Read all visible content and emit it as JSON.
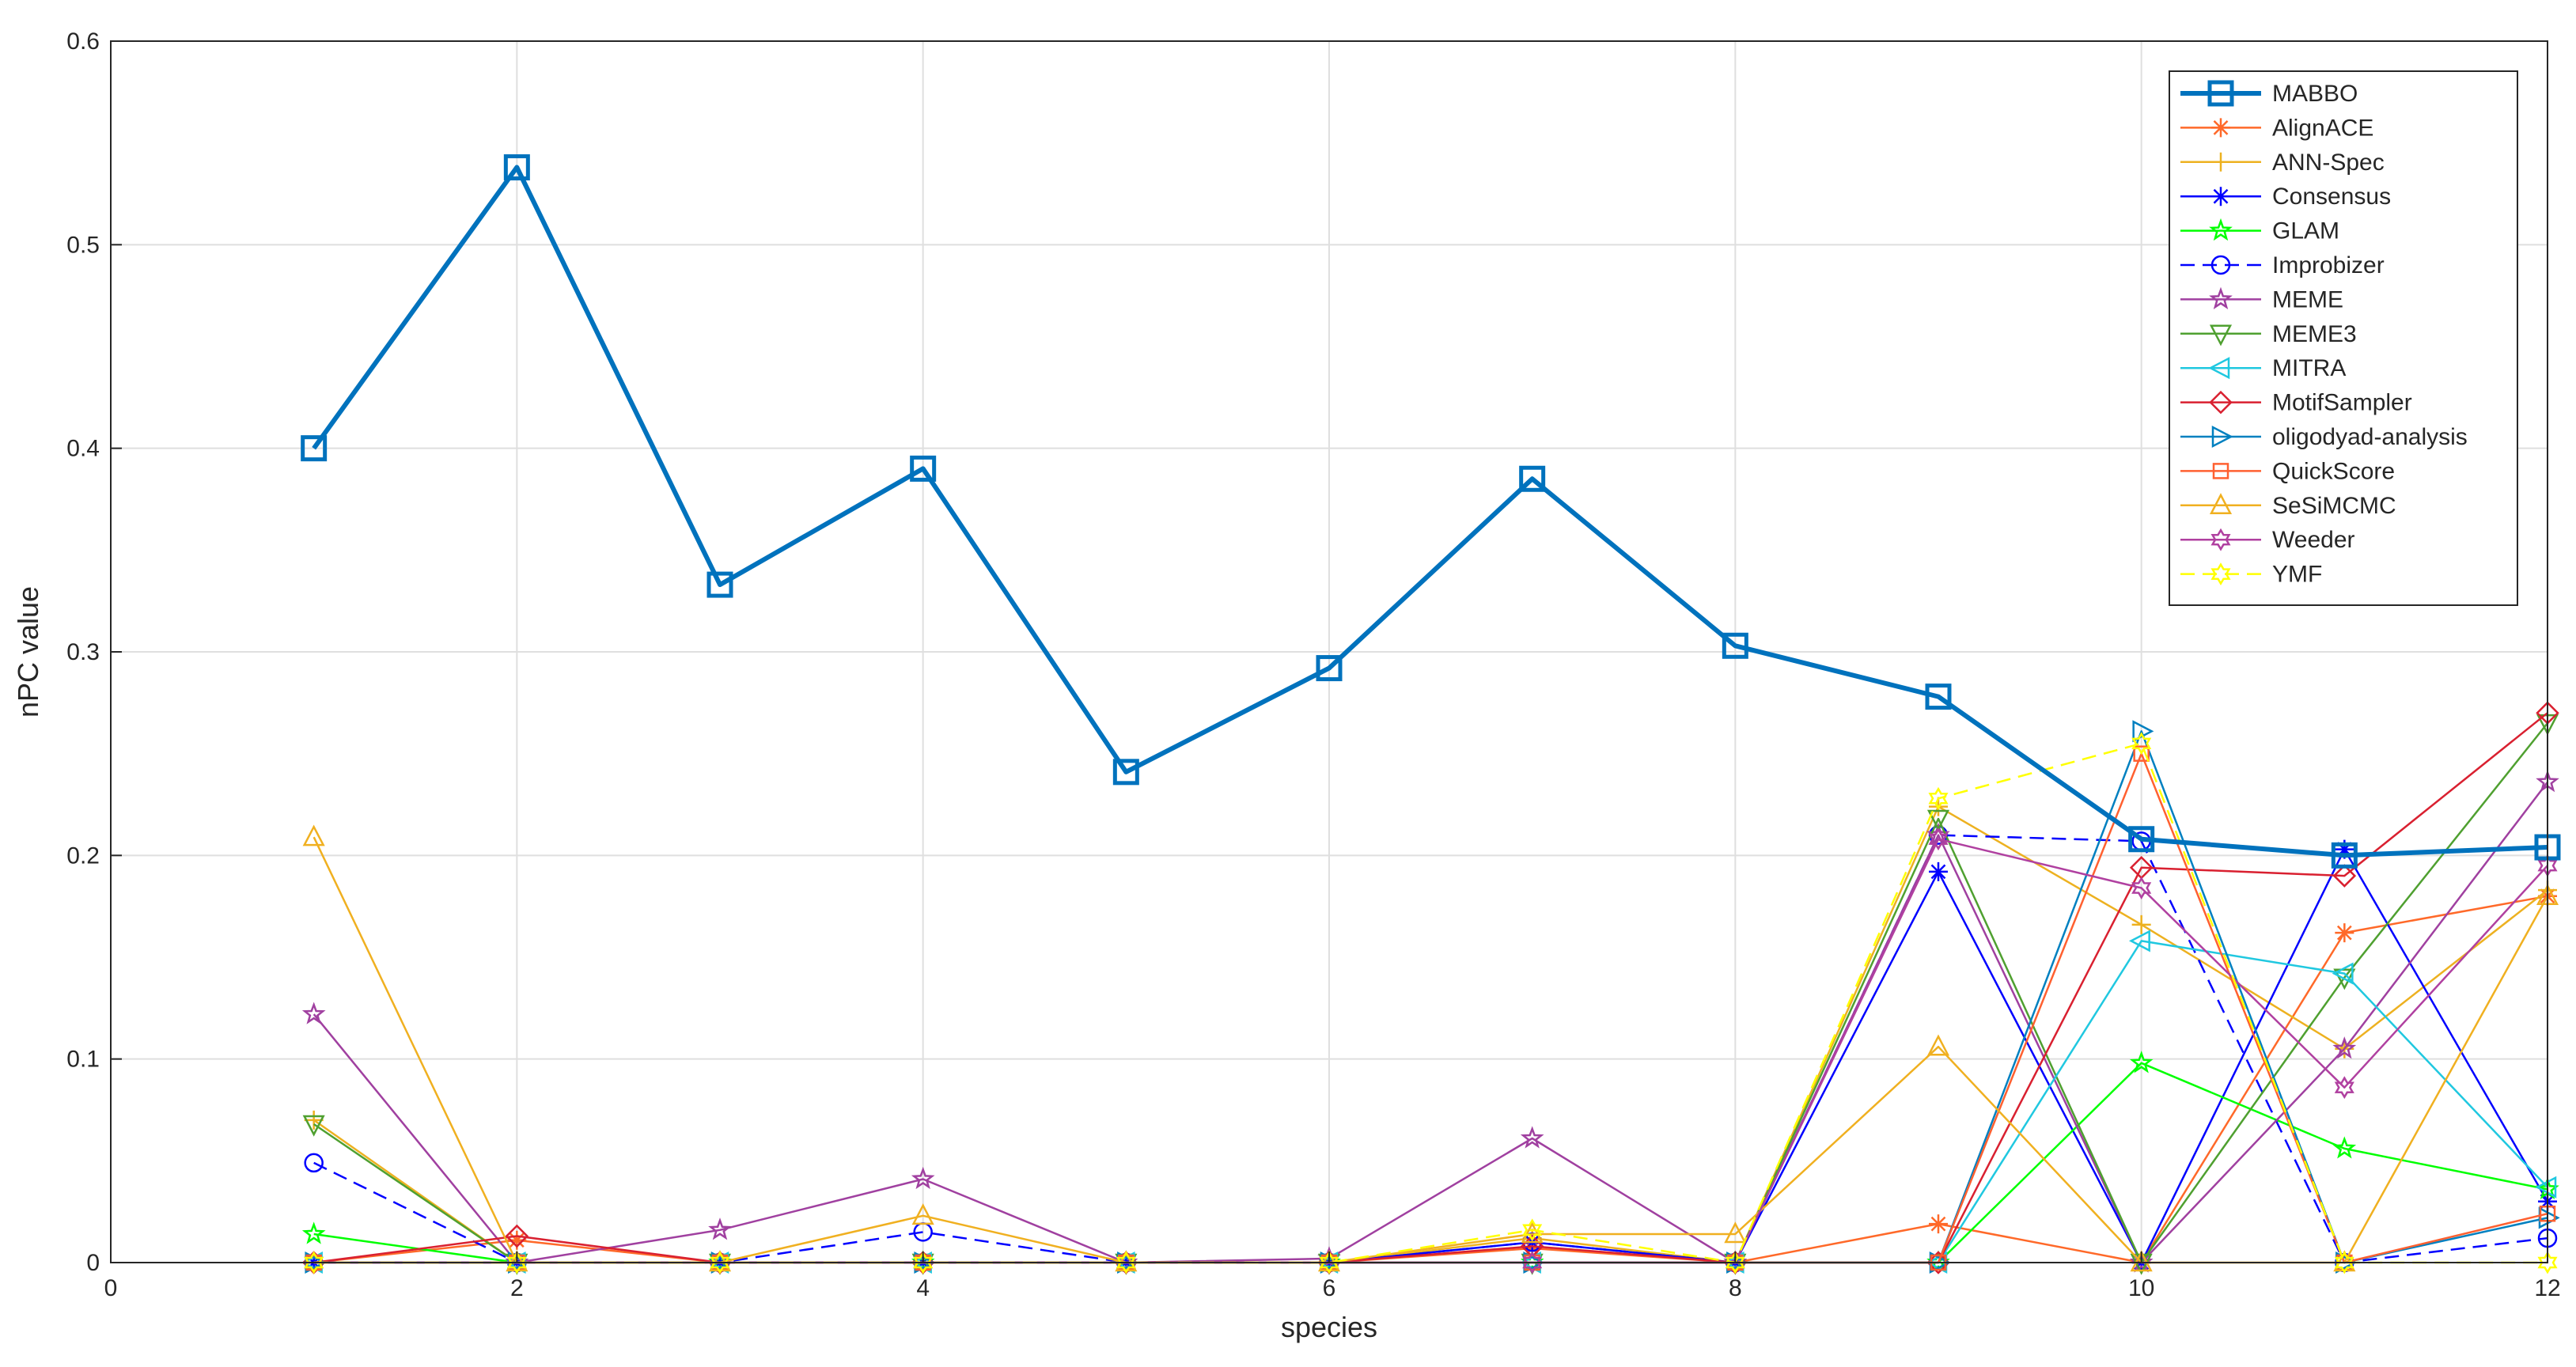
{
  "chart_data": {
    "type": "line",
    "title": "",
    "xlabel": "species",
    "ylabel": "nPC value",
    "xlim": [
      0,
      12
    ],
    "ylim": [
      0,
      0.6
    ],
    "xticks": [
      0,
      2,
      4,
      6,
      8,
      10,
      12
    ],
    "yticks": [
      0,
      0.1,
      0.2,
      0.3,
      0.4,
      0.5,
      0.6
    ],
    "x": [
      1,
      2,
      3,
      4,
      5,
      6,
      7,
      8,
      9,
      10,
      11,
      12
    ],
    "grid": true,
    "legend_position": "top-right",
    "series": [
      {
        "name": "MABBO",
        "color": "#0072BD",
        "marker": "square",
        "dash": "solid",
        "bold": true,
        "values": [
          0.4,
          0.538,
          0.333,
          0.39,
          0.241,
          0.292,
          0.385,
          0.303,
          0.278,
          0.208,
          0.2,
          0.204
        ]
      },
      {
        "name": "AlignACE",
        "color": "#FF6929",
        "marker": "asterisk",
        "dash": "solid",
        "values": [
          0,
          0.011,
          0,
          0,
          0,
          0,
          0.007,
          0,
          0.019,
          0,
          0.162,
          0.18
        ]
      },
      {
        "name": "ANN-Spec",
        "color": "#EDB120",
        "marker": "plus",
        "dash": "solid",
        "values": [
          0.07,
          0,
          0,
          0,
          0,
          0,
          0.012,
          0,
          0.224,
          0.166,
          0.105,
          0.183
        ]
      },
      {
        "name": "Consensus",
        "color": "#0000FF",
        "marker": "asterisk",
        "dash": "solid",
        "values": [
          0,
          0,
          0,
          0,
          0,
          0,
          0.01,
          0,
          0.192,
          0,
          0.203,
          0.03
        ]
      },
      {
        "name": "GLAM",
        "color": "#00FF00",
        "marker": "pentagram",
        "dash": "solid",
        "values": [
          0.014,
          0,
          0,
          0,
          0,
          0,
          0,
          0,
          0,
          0.098,
          0.056,
          0.036
        ]
      },
      {
        "name": "Improbizer",
        "color": "#0000FF",
        "marker": "circle",
        "dash": "dashed",
        "values": [
          0.049,
          0,
          0,
          0.015,
          0,
          0,
          0.01,
          0,
          0.21,
          0.207,
          0,
          0.012
        ]
      },
      {
        "name": "MEME",
        "color": "#A040A0",
        "marker": "pentagram",
        "dash": "solid",
        "values": [
          0.122,
          0,
          0.016,
          0.041,
          0,
          0.002,
          0.061,
          0,
          0.21,
          0,
          0.105,
          0.236
        ]
      },
      {
        "name": "MEME3",
        "color": "#4FA030",
        "marker": "triangle-down",
        "dash": "solid",
        "values": [
          0.068,
          0,
          0,
          0,
          0,
          0,
          0,
          0,
          0.218,
          0,
          0.14,
          0.265
        ]
      },
      {
        "name": "MITRA",
        "color": "#20C8E0",
        "marker": "triangle-left",
        "dash": "solid",
        "values": [
          0,
          0,
          0,
          0,
          0,
          0,
          0,
          0,
          0,
          0.158,
          0.142,
          0.037
        ]
      },
      {
        "name": "MotifSampler",
        "color": "#D92030",
        "marker": "diamond",
        "dash": "solid",
        "values": [
          0,
          0.013,
          0,
          0,
          0,
          0,
          0.008,
          0,
          0,
          0.194,
          0.19,
          0.27
        ]
      },
      {
        "name": "oligodyad-analysis",
        "color": "#0080C0",
        "marker": "triangle-right",
        "dash": "solid",
        "values": [
          0,
          0,
          0,
          0,
          0,
          0,
          0,
          0,
          0,
          0.261,
          0,
          0.022
        ]
      },
      {
        "name": "QuickScore",
        "color": "#FF6030",
        "marker": "square-small",
        "dash": "solid",
        "values": [
          0,
          0,
          0,
          0,
          0,
          0,
          0,
          0,
          0,
          0.25,
          0,
          0.024
        ]
      },
      {
        "name": "SeSiMCMC",
        "color": "#F0B020",
        "marker": "triangle-up",
        "dash": "solid",
        "values": [
          0.209,
          0,
          0,
          0.023,
          0,
          0,
          0.014,
          0.014,
          0.106,
          0,
          0,
          0.18
        ]
      },
      {
        "name": "Weeder",
        "color": "#B040A0",
        "marker": "hexagram",
        "dash": "solid",
        "values": [
          0,
          0,
          0,
          0,
          0,
          0,
          0,
          0,
          0.208,
          0.184,
          0.086,
          0.195
        ]
      },
      {
        "name": "YMF",
        "color": "#FFFF00",
        "marker": "hexagram",
        "dash": "dashed",
        "values": [
          0,
          0,
          0,
          0,
          0,
          0,
          0.016,
          0,
          0.228,
          0.255,
          0,
          0
        ]
      }
    ]
  }
}
